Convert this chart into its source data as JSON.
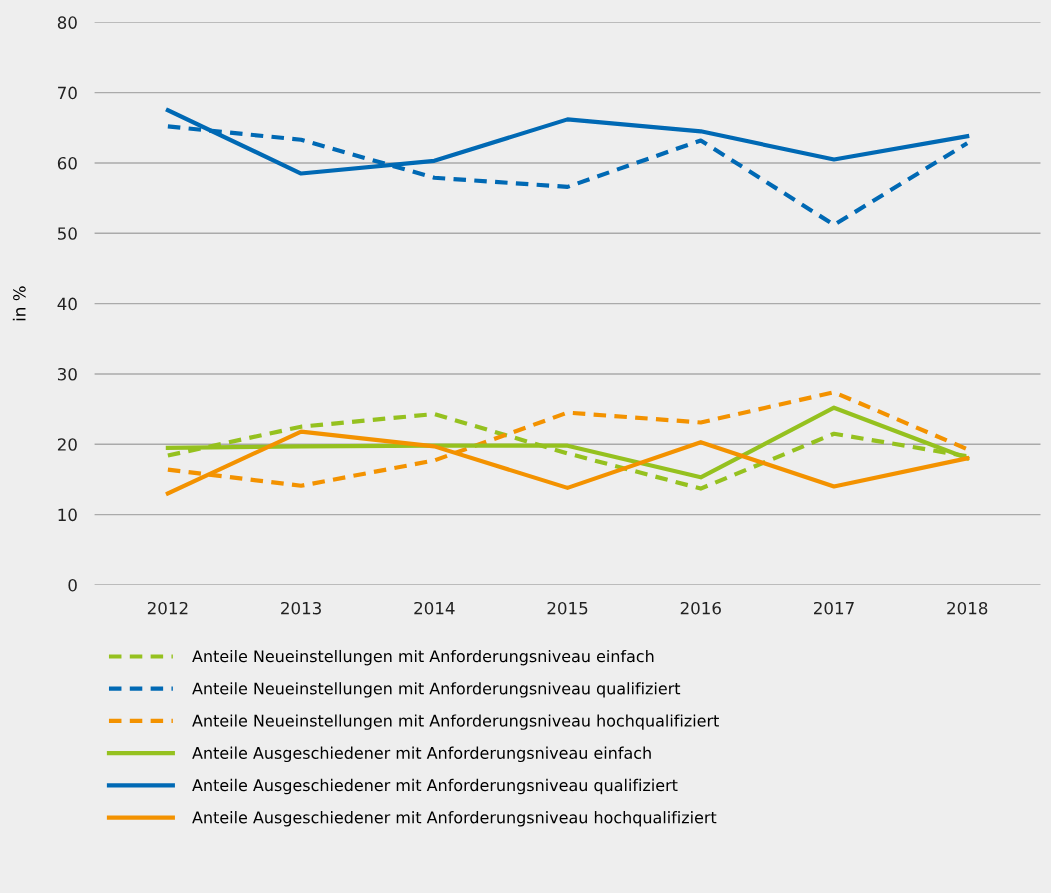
{
  "chart_data": {
    "type": "line",
    "ylabel": "in %",
    "categories": [
      "2012",
      "2013",
      "2014",
      "2015",
      "2016",
      "2017",
      "2018"
    ],
    "ylim": [
      0,
      80
    ],
    "yticks": [
      0,
      10,
      20,
      30,
      40,
      50,
      60,
      70,
      80
    ],
    "grid": "y",
    "legend": "bottom",
    "marker": "none",
    "series": [
      {
        "name": "Anteile Neueinstellungen mit Anforderungsniveau einfach",
        "color": "#95c11f",
        "line_style": "dashed",
        "values": [
          18.4,
          22.5,
          24.3,
          18.7,
          13.7,
          21.5,
          18.3
        ]
      },
      {
        "name": "Anteile Neueinstellungen mit Anforderungsniveau qualifiziert",
        "color": "#0069b4",
        "line_style": "dashed",
        "values": [
          65.2,
          63.3,
          57.9,
          56.6,
          63.2,
          51.2,
          62.8
        ]
      },
      {
        "name": "Anteile Neueinstellungen mit Anforderungsniveau hochqualifiziert",
        "color": "#f39200",
        "line_style": "dashed",
        "values": [
          16.4,
          14.1,
          17.7,
          24.5,
          23.1,
          27.4,
          19.3
        ]
      },
      {
        "name": "Anteile Ausgeschiedener mit Anforderungsniveau einfach",
        "color": "#95c11f",
        "line_style": "solid",
        "values": [
          19.5,
          19.7,
          19.8,
          19.8,
          15.3,
          25.2,
          18.0
        ]
      },
      {
        "name": "Anteile Ausgeschiedener mit Anforderungsniveau qualifiziert",
        "color": "#0069b4",
        "line_style": "solid",
        "values": [
          67.5,
          58.5,
          60.3,
          66.2,
          64.5,
          60.5,
          63.8
        ]
      },
      {
        "name": "Anteile Ausgeschiedener mit Anforderungsniveau hochqualifiziert",
        "color": "#f39200",
        "line_style": "solid",
        "values": [
          13.0,
          21.8,
          19.7,
          13.8,
          20.3,
          14.0,
          18.0
        ]
      }
    ]
  }
}
